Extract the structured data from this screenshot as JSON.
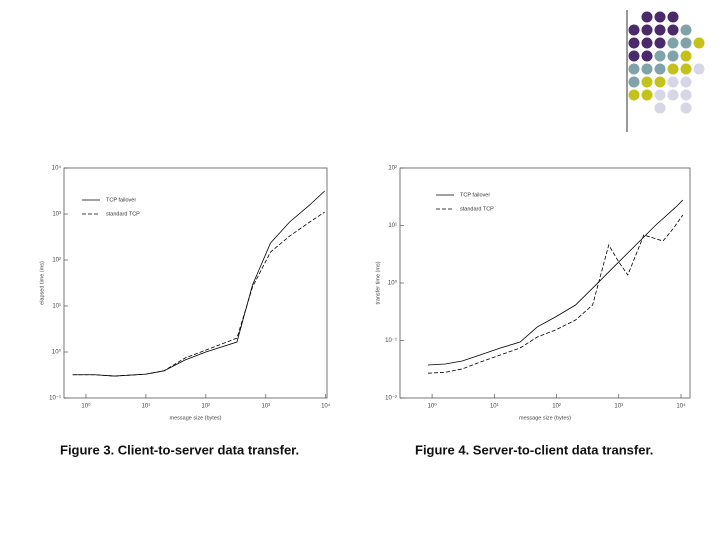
{
  "chart_data": [
    {
      "type": "line",
      "caption": "Figure 3. Client-to-server data transfer.",
      "x_label": "message size (bytes)",
      "y_label": "elapsed time (ms)",
      "log_x": true,
      "log_y": true,
      "x": [
        0.6,
        1.4,
        3,
        10,
        20,
        45,
        100,
        330,
        600,
        1200,
        2500,
        5400,
        9600
      ],
      "series": [
        {
          "name": "TCP failover",
          "color": "#000000",
          "linestyle": "solid",
          "values": [
            0.32,
            0.32,
            0.3,
            0.33,
            0.39,
            0.67,
            1.0,
            1.65,
            28.6,
            234,
            670,
            1570,
            3160
          ]
        },
        {
          "name": "standard TCP",
          "color": "#000000",
          "linestyle": "dashed",
          "values": [
            0.32,
            0.32,
            0.3,
            0.33,
            0.39,
            0.74,
            1.1,
            2.0,
            25.9,
            149,
            331,
            670,
            1100
          ]
        }
      ],
      "xlim": [
        0.43,
        10500
      ],
      "xticks": [
        {
          "value": 1,
          "label": "10⁰"
        },
        {
          "value": 10,
          "label": "10¹"
        },
        {
          "value": 100,
          "label": "10²"
        },
        {
          "value": 1000,
          "label": "10³"
        },
        {
          "value": 10000,
          "label": "10⁴"
        }
      ],
      "ylim": [
        0.1,
        10000
      ],
      "yticks": [
        {
          "value": 0.1,
          "label": "10⁻¹"
        },
        {
          "value": 1,
          "label": "10⁰"
        },
        {
          "value": 10,
          "label": "10¹"
        },
        {
          "value": 100,
          "label": "10²"
        },
        {
          "value": 1000,
          "label": "10³"
        },
        {
          "value": 10000,
          "label": "10⁴"
        }
      ]
    },
    {
      "type": "line",
      "caption": "Figure 4. Server-to-client data transfer.",
      "x_label": "message size (bytes)",
      "y_label": "transfer time (ms)",
      "log_x": true,
      "log_y": true,
      "series": [
        {
          "name": "TCP failover",
          "color": "#000000",
          "linestyle": "solid",
          "x": [
            0.86,
            1.62,
            3.05,
            5.9,
            12.5,
            26,
            49,
            96,
            202,
            426,
            895,
            1880,
            3950,
            8300,
            10700
          ],
          "values": [
            0.0375,
            0.039,
            0.044,
            0.056,
            0.074,
            0.094,
            0.172,
            0.256,
            0.414,
            0.92,
            2.06,
            4.58,
            10.2,
            21,
            27.7
          ]
        },
        {
          "name": "standard TCP",
          "color": "#000000",
          "linestyle": "dashed",
          "x": [
            0.86,
            1.62,
            3.05,
            5.9,
            12.5,
            26,
            49,
            96,
            202,
            380,
            690,
            1000,
            1400,
            2530,
            5130,
            7420,
            10700
          ],
          "values": [
            0.027,
            0.028,
            0.032,
            0.042,
            0.056,
            0.074,
            0.115,
            0.152,
            0.227,
            0.414,
            4.58,
            2.32,
            1.38,
            6.84,
            5.37,
            8.69,
            15.2
          ]
        }
      ],
      "xlim": [
        0.305,
        13960
      ],
      "xticks": [
        {
          "value": 1,
          "label": "10⁰"
        },
        {
          "value": 10,
          "label": "10¹"
        },
        {
          "value": 100,
          "label": "10²"
        },
        {
          "value": 1000,
          "label": "10³"
        },
        {
          "value": 10000,
          "label": "10⁴"
        }
      ],
      "ylim": [
        0.01,
        100
      ],
      "yticks": [
        {
          "value": 0.01,
          "label": "10⁻²"
        },
        {
          "value": 0.1,
          "label": "10⁻¹"
        },
        {
          "value": 1,
          "label": "10⁰"
        },
        {
          "value": 10,
          "label": "10¹"
        },
        {
          "value": 100,
          "label": "10²"
        }
      ]
    }
  ]
}
